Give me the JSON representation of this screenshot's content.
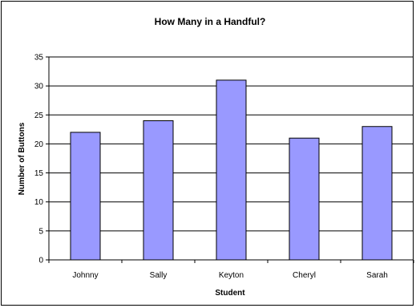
{
  "chart_data": {
    "type": "bar",
    "title": "How Many in a Handful?",
    "xlabel": "Student",
    "ylabel": "Number of Buttons",
    "categories": [
      "Johnny",
      "Sally",
      "Keyton",
      "Cheryl",
      "Sarah"
    ],
    "values": [
      22,
      24,
      31,
      21,
      23
    ],
    "ylim": [
      0,
      35
    ],
    "yticks": [
      0,
      5,
      10,
      15,
      20,
      25,
      30,
      35
    ],
    "grid": true,
    "legend": "none",
    "bar_color": "#9999FF",
    "bar_edge_color": "#000000"
  }
}
